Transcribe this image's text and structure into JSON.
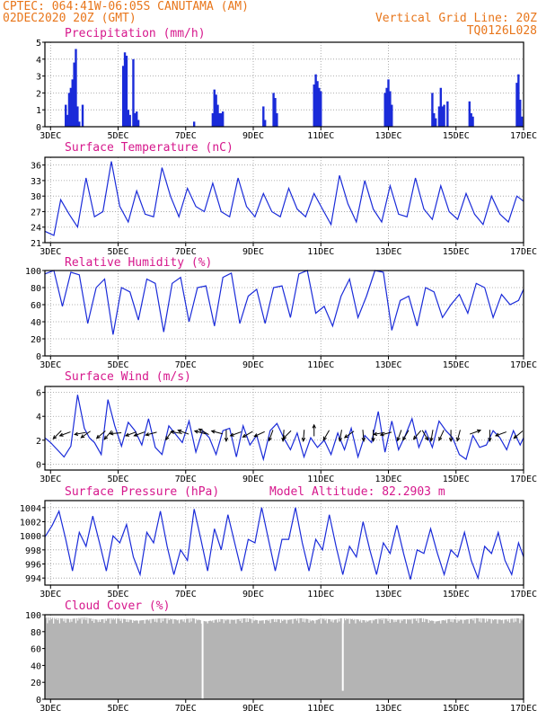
{
  "header": {
    "line1_left": "CPTEC:   064:41W-06:05S  CANUTAMA (AM)",
    "line2_left": "02DEC2020 20Z (GMT)",
    "line2_right": "Vertical Grid Line: 20Z",
    "line3_right": "TQ0126L028"
  },
  "colors": {
    "header": "#e8761b",
    "title": "#d6178c",
    "series": "#1a2bd9",
    "cloud": "#b4b4b4",
    "grid": "#9a9a9a"
  },
  "x_axis": {
    "start_day": 2.833,
    "end_day": 17.0,
    "ticks": [
      "3DEC",
      "5DEC",
      "7DEC",
      "9DEC",
      "11DEC",
      "13DEC",
      "15DEC",
      "17DEC"
    ],
    "tick_days": [
      3,
      5,
      7,
      9,
      11,
      13,
      15,
      17
    ]
  },
  "chart_data": [
    {
      "id": "precip",
      "type": "bar",
      "title": "Precipitation (mm/h)",
      "ylim": [
        0,
        5
      ],
      "yticks": [
        0,
        1,
        2,
        3,
        4,
        5
      ],
      "x_days": [
        3.45,
        3.5,
        3.55,
        3.6,
        3.65,
        3.7,
        3.75,
        3.8,
        3.85,
        3.95,
        5.15,
        5.2,
        5.25,
        5.3,
        5.35,
        5.45,
        5.5,
        5.55,
        5.6,
        7.25,
        7.8,
        7.85,
        7.9,
        7.95,
        8.0,
        8.05,
        8.1,
        9.3,
        9.35,
        9.6,
        9.65,
        9.7,
        10.8,
        10.85,
        10.9,
        10.95,
        11.0,
        12.9,
        12.95,
        13.0,
        13.05,
        13.1,
        14.3,
        14.35,
        14.4,
        14.5,
        14.55,
        14.6,
        14.65,
        14.75,
        15.4,
        15.45,
        15.5,
        16.8,
        16.85,
        16.9,
        16.95
      ],
      "values": [
        1.3,
        0.7,
        2.0,
        2.3,
        2.8,
        3.8,
        4.6,
        1.2,
        0.3,
        1.3,
        3.6,
        4.4,
        4.2,
        1.0,
        0.7,
        4.0,
        0.8,
        0.9,
        0.4,
        0.3,
        0.8,
        2.2,
        1.9,
        1.3,
        0.8,
        0.8,
        0.9,
        1.2,
        0.4,
        2.0,
        1.7,
        0.8,
        2.5,
        3.1,
        2.7,
        2.3,
        2.1,
        2.0,
        2.3,
        2.8,
        2.1,
        1.3,
        2.0,
        0.8,
        0.5,
        1.2,
        2.3,
        1.2,
        1.3,
        1.5,
        1.5,
        0.8,
        0.6,
        2.6,
        3.1,
        1.6,
        0.6
      ]
    },
    {
      "id": "temp",
      "type": "line",
      "title": "Surface Temperature (nC)",
      "ylim": [
        21,
        37.5
      ],
      "yticks": [
        21,
        24,
        27,
        30,
        33,
        36
      ],
      "x_days": [
        2.83,
        3.1,
        3.3,
        3.55,
        3.8,
        4.05,
        4.3,
        4.55,
        4.8,
        5.05,
        5.3,
        5.55,
        5.8,
        6.05,
        6.3,
        6.55,
        6.8,
        7.05,
        7.3,
        7.55,
        7.8,
        8.05,
        8.3,
        8.55,
        8.8,
        9.05,
        9.3,
        9.55,
        9.8,
        10.05,
        10.3,
        10.55,
        10.8,
        11.05,
        11.3,
        11.55,
        11.8,
        12.05,
        12.3,
        12.55,
        12.8,
        13.05,
        13.3,
        13.55,
        13.8,
        14.05,
        14.3,
        14.55,
        14.8,
        15.05,
        15.3,
        15.55,
        15.8,
        16.05,
        16.3,
        16.55,
        16.8,
        17.0
      ],
      "values": [
        23.2,
        22.4,
        29.3,
        26.5,
        24.0,
        33.5,
        26.0,
        27.0,
        36.7,
        28.0,
        25.0,
        31.0,
        26.5,
        26.0,
        35.5,
        30.0,
        26.0,
        31.5,
        28.0,
        27.0,
        32.5,
        27.0,
        26.0,
        33.5,
        28.0,
        26.0,
        30.5,
        27.0,
        26.0,
        31.5,
        27.5,
        26.0,
        30.5,
        27.5,
        24.5,
        34.0,
        28.5,
        25.0,
        33.0,
        27.5,
        25.0,
        32.0,
        26.5,
        26.0,
        33.5,
        27.5,
        25.5,
        32.0,
        27.0,
        25.5,
        30.5,
        26.5,
        24.5,
        30.0,
        26.5,
        25.0,
        30.0,
        29.0
      ]
    },
    {
      "id": "rh",
      "type": "line",
      "title": "Relative Humidity (%)",
      "ylim": [
        0,
        100
      ],
      "yticks": [
        0,
        20,
        40,
        60,
        80,
        100
      ],
      "x_days": [
        2.83,
        3.1,
        3.35,
        3.6,
        3.85,
        4.1,
        4.35,
        4.6,
        4.85,
        5.1,
        5.35,
        5.6,
        5.85,
        6.1,
        6.35,
        6.6,
        6.85,
        7.1,
        7.35,
        7.6,
        7.85,
        8.1,
        8.35,
        8.6,
        8.85,
        9.1,
        9.35,
        9.6,
        9.85,
        10.1,
        10.35,
        10.6,
        10.85,
        11.1,
        11.35,
        11.6,
        11.85,
        12.1,
        12.35,
        12.6,
        12.85,
        13.1,
        13.35,
        13.6,
        13.85,
        14.1,
        14.35,
        14.6,
        14.85,
        15.1,
        15.35,
        15.6,
        15.85,
        16.1,
        16.35,
        16.6,
        16.85,
        17.0
      ],
      "values": [
        96,
        100,
        58,
        98,
        95,
        38,
        80,
        90,
        25,
        80,
        75,
        42,
        90,
        85,
        28,
        85,
        92,
        40,
        80,
        82,
        35,
        92,
        97,
        38,
        70,
        78,
        38,
        80,
        82,
        45,
        96,
        100,
        50,
        58,
        35,
        70,
        90,
        45,
        70,
        100,
        98,
        30,
        65,
        70,
        35,
        80,
        75,
        45,
        60,
        72,
        50,
        85,
        80,
        45,
        72,
        60,
        65,
        78
      ]
    },
    {
      "id": "wind",
      "type": "line",
      "title": "Surface Wind (m/s)",
      "ylim": [
        -0.5,
        6.5
      ],
      "yticks": [
        0,
        2,
        4,
        6
      ],
      "x_days": [
        2.83,
        3.0,
        3.2,
        3.4,
        3.6,
        3.8,
        4.0,
        4.15,
        4.3,
        4.5,
        4.7,
        4.9,
        5.1,
        5.3,
        5.5,
        5.7,
        5.9,
        6.1,
        6.3,
        6.5,
        6.7,
        6.9,
        7.1,
        7.3,
        7.5,
        7.7,
        7.9,
        8.1,
        8.3,
        8.5,
        8.7,
        8.9,
        9.1,
        9.3,
        9.5,
        9.7,
        9.9,
        10.1,
        10.3,
        10.5,
        10.7,
        10.9,
        11.1,
        11.3,
        11.5,
        11.7,
        11.9,
        12.1,
        12.3,
        12.5,
        12.7,
        12.9,
        13.1,
        13.3,
        13.5,
        13.7,
        13.9,
        14.1,
        14.3,
        14.5,
        14.7,
        14.9,
        15.1,
        15.3,
        15.5,
        15.7,
        15.9,
        16.1,
        16.3,
        16.5,
        16.7,
        16.9,
        17.0
      ],
      "values": [
        2.2,
        1.8,
        1.2,
        0.6,
        1.5,
        5.8,
        3.0,
        2.2,
        1.8,
        0.8,
        5.4,
        3.2,
        1.5,
        3.5,
        2.8,
        1.6,
        3.8,
        1.4,
        0.8,
        3.2,
        2.5,
        1.8,
        3.6,
        1.0,
        2.8,
        2.2,
        0.8,
        2.8,
        3.0,
        0.6,
        3.2,
        1.6,
        2.4,
        0.4,
        2.8,
        3.4,
        2.2,
        1.2,
        2.6,
        0.6,
        2.2,
        1.4,
        2.0,
        0.8,
        2.6,
        1.2,
        3.0,
        0.6,
        2.4,
        1.8,
        4.4,
        1.0,
        3.6,
        1.2,
        2.4,
        3.8,
        1.4,
        2.8,
        1.4,
        3.6,
        2.8,
        2.2,
        0.8,
        0.4,
        2.4,
        1.4,
        1.6,
        2.8,
        2.2,
        1.2,
        2.8,
        1.6,
        2.2
      ],
      "arrows_x_days": [
        3.25,
        3.5,
        3.95,
        4.1,
        4.55,
        4.75,
        5.0,
        5.45,
        5.7,
        6.05,
        6.55,
        6.8,
        7.0,
        7.5,
        7.6,
        8.0,
        8.2,
        8.55,
        8.9,
        9.25,
        9.55,
        9.9,
        10.05,
        10.5,
        10.8,
        11.2,
        11.6,
        11.9,
        12.25,
        12.55,
        12.8,
        13.0,
        13.35,
        13.55,
        13.9,
        14.05,
        14.3,
        14.6,
        14.85,
        15.1,
        15.5,
        16.0,
        16.4,
        16.9
      ],
      "arrows_dir_deg": [
        -135,
        200,
        190,
        215,
        220,
        230,
        185,
        200,
        200,
        195,
        235,
        170,
        160,
        165,
        150,
        165,
        270,
        200,
        210,
        205,
        250,
        265,
        225,
        265,
        90,
        240,
        260,
        215,
        275,
        270,
        190,
        195,
        250,
        240,
        230,
        300,
        260,
        245,
        270,
        255,
        20,
        270,
        200,
        220
      ]
    },
    {
      "id": "press",
      "type": "line",
      "title": "Surface Pressure (hPa)",
      "annotation": "Model Altitude: 82.2903 m",
      "ylim": [
        993,
        1005
      ],
      "yticks": [
        994,
        996,
        998,
        1000,
        1002,
        1004
      ],
      "x_days": [
        2.83,
        3.05,
        3.25,
        3.45,
        3.65,
        3.85,
        4.05,
        4.25,
        4.45,
        4.65,
        4.85,
        5.05,
        5.25,
        5.45,
        5.65,
        5.85,
        6.05,
        6.25,
        6.45,
        6.65,
        6.85,
        7.05,
        7.25,
        7.45,
        7.65,
        7.85,
        8.05,
        8.25,
        8.45,
        8.65,
        8.85,
        9.05,
        9.25,
        9.45,
        9.65,
        9.85,
        10.05,
        10.25,
        10.45,
        10.65,
        10.85,
        11.05,
        11.25,
        11.45,
        11.65,
        11.85,
        12.05,
        12.25,
        12.45,
        12.65,
        12.85,
        13.05,
        13.25,
        13.45,
        13.65,
        13.85,
        14.05,
        14.25,
        14.45,
        14.65,
        14.85,
        15.05,
        15.25,
        15.45,
        15.65,
        15.85,
        16.05,
        16.25,
        16.45,
        16.65,
        16.85,
        17.0
      ],
      "values": [
        999.8,
        1001.5,
        1003.5,
        999.5,
        995.0,
        1000.5,
        998.5,
        1002.8,
        999.0,
        995.0,
        1000.0,
        999.0,
        1001.6,
        997.0,
        994.5,
        1000.5,
        999.0,
        1003.5,
        998.5,
        994.5,
        998.0,
        996.5,
        1003.8,
        999.5,
        995.0,
        1001.0,
        998.0,
        1003.0,
        999.0,
        995.0,
        999.5,
        999.0,
        1004.0,
        999.5,
        995.0,
        999.5,
        999.5,
        1004.0,
        999.0,
        995.0,
        999.5,
        998.0,
        1003.0,
        998.5,
        994.5,
        998.5,
        997.0,
        1002.0,
        998.0,
        994.5,
        999.0,
        997.5,
        1001.5,
        997.5,
        993.8,
        998.0,
        997.5,
        1001.0,
        997.5,
        994.5,
        998.0,
        997.0,
        1000.5,
        996.5,
        994.0,
        998.5,
        997.5,
        1000.5,
        996.5,
        994.5,
        999.0,
        997.0
      ]
    },
    {
      "id": "cloud",
      "type": "area",
      "title": "Cloud Cover (%)",
      "ylim": [
        0,
        100
      ],
      "yticks": [
        0,
        20,
        40,
        60,
        80,
        100
      ],
      "x_days": [
        2.83,
        3.2,
        3.6,
        4.0,
        4.4,
        4.8,
        5.2,
        5.6,
        6.0,
        6.4,
        6.8,
        7.0,
        7.2,
        7.6,
        8.0,
        8.4,
        8.8,
        9.2,
        9.6,
        10.0,
        10.4,
        10.6,
        10.8,
        11.0,
        11.2,
        11.4,
        11.6,
        12.0,
        12.4,
        12.8,
        13.2,
        13.6,
        14.0,
        14.4,
        14.8,
        15.2,
        15.6,
        16.0,
        16.4,
        16.8,
        17.0
      ],
      "values": [
        97,
        96,
        95,
        97,
        94,
        96,
        95,
        93,
        95,
        96,
        94,
        95,
        96,
        92,
        95,
        94,
        96,
        93,
        95,
        94,
        96,
        95,
        93,
        96,
        95,
        94,
        96,
        95,
        93,
        96,
        94,
        95,
        96,
        92,
        95,
        94,
        96,
        95,
        94,
        96,
        95
      ],
      "dips_x_days": [
        7.5,
        11.65
      ],
      "dips_values": [
        0,
        10
      ]
    }
  ]
}
